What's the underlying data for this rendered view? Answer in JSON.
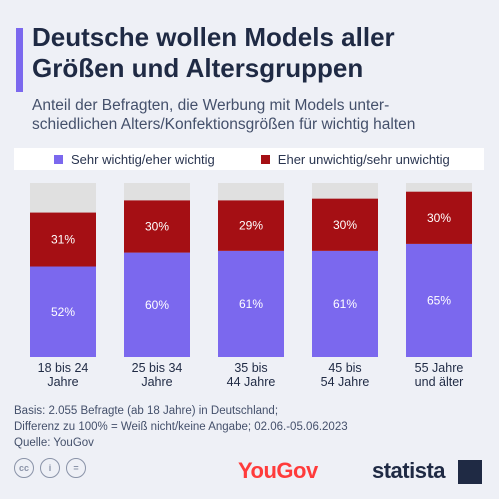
{
  "title_lines": [
    "Deutsche wollen Models aller",
    "Größen und Altersgruppen"
  ],
  "subtitle_lines": [
    "Anteil der Befragten, die Werbung mit Models unter-",
    "schiedlichen Alters/Konfektionsgrößen für wichtig halten"
  ],
  "colors": {
    "accent": "#7b68ee",
    "important": "#7b68ee",
    "unimportant": "#a50f14",
    "remainder": "#e0e0e0"
  },
  "chart_data": {
    "type": "bar",
    "stacked": true,
    "categories": [
      [
        "18 bis 24",
        "Jahre"
      ],
      [
        "25 bis 34",
        "Jahre"
      ],
      [
        "35 bis",
        "44 Jahre"
      ],
      [
        "45 bis",
        "54 Jahre"
      ],
      [
        "55 Jahre",
        "und älter"
      ]
    ],
    "series": [
      {
        "name": "Sehr wichtig/eher wichtig",
        "values": [
          52,
          60,
          61,
          61,
          65
        ],
        "labels": [
          "52%",
          "60%",
          "61%",
          "61%",
          "65%"
        ],
        "color": "#7b68ee"
      },
      {
        "name": "Eher unwichtig/sehr unwichtig",
        "values": [
          31,
          30,
          29,
          30,
          30
        ],
        "labels": [
          "31%",
          "30%",
          "29%",
          "30%",
          "30%"
        ],
        "color": "#a50f14"
      }
    ],
    "ylim": [
      0,
      100
    ],
    "legend_position": "top"
  },
  "notes": [
    "Basis: 2.055 Befragte (ab 18 Jahre) in Deutschland;",
    "Differenz zu 100% = Weiß nicht/keine Angabe; 02.06.-05.06.2023",
    "Quelle: YouGov"
  ],
  "footer": {
    "cc_icons": [
      "cc-icon",
      "person-icon",
      "equals-icon"
    ],
    "cc_glyphs": [
      "cc",
      "i",
      "="
    ],
    "yougov_logo": "YouGov",
    "statista_logo": "statista"
  }
}
